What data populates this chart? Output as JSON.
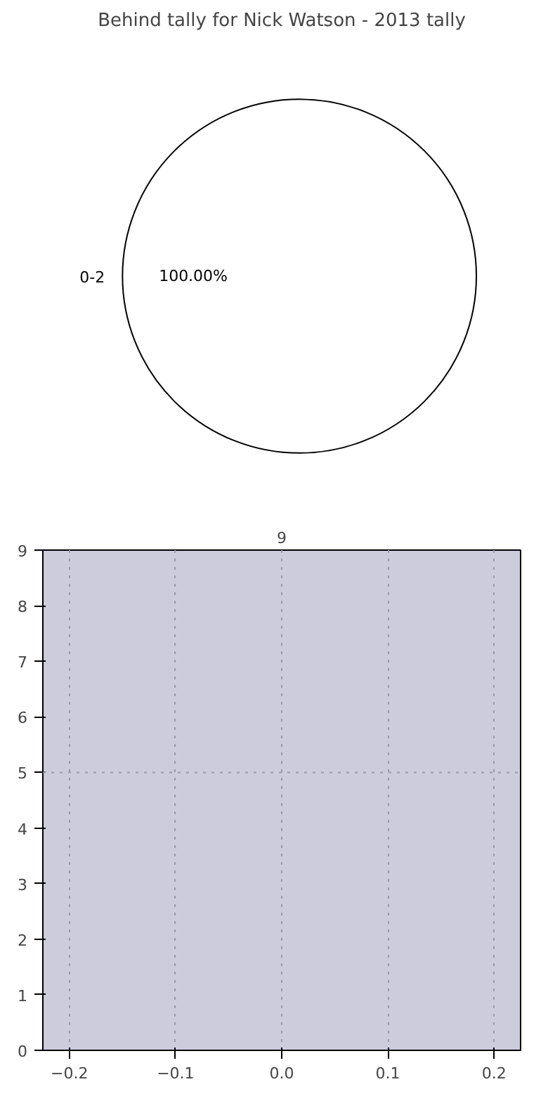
{
  "chart_data": [
    {
      "type": "pie",
      "title": "Behind tally for Nick Watson - 2013 tally",
      "categories": [
        "0-2"
      ],
      "values": [
        100
      ],
      "colors": [
        "#ffffff"
      ],
      "value_labels": [
        "100.00%"
      ]
    },
    {
      "type": "bar",
      "title": "9",
      "xlim": [
        -0.225,
        0.225
      ],
      "xticks": [
        {
          "value": -0.2,
          "label": "−0.2"
        },
        {
          "value": -0.1,
          "label": "−0.1"
        },
        {
          "value": 0,
          "label": "0.0"
        },
        0.1,
        0.2
      ],
      "ylim": [
        0,
        9
      ],
      "yticks": [
        0,
        1,
        2,
        3,
        4,
        5,
        6,
        7,
        8,
        9
      ],
      "grid": "x",
      "ref_lines": [
        {
          "axis": "y",
          "value": 5,
          "color": "#9999aa",
          "line_style": "dotted"
        }
      ]
    }
  ]
}
